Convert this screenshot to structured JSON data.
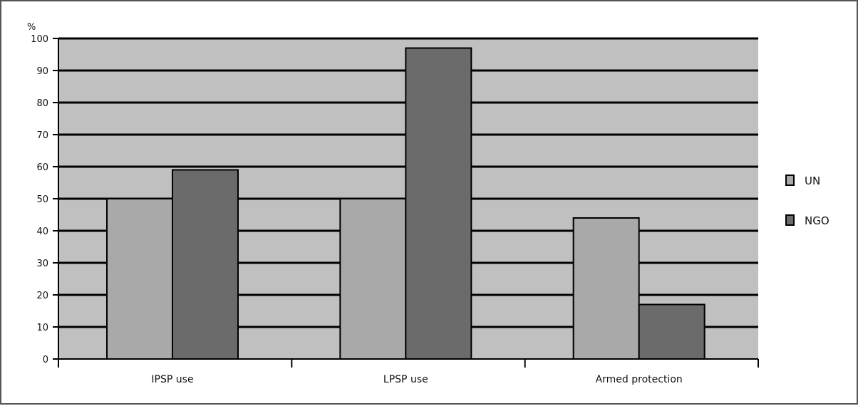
{
  "chart_data": {
    "type": "bar",
    "title": "",
    "xlabel": "",
    "ylabel": "%",
    "ylim": [
      0,
      100
    ],
    "yticks": [
      0,
      10,
      20,
      30,
      40,
      50,
      60,
      70,
      80,
      90,
      100
    ],
    "grid": true,
    "legend_position": "right",
    "categories": [
      "IPSP use",
      "LPSP use",
      "Armed protection"
    ],
    "series": [
      {
        "name": "UN",
        "values": [
          50,
          50,
          44
        ],
        "color": "#a9a9a9"
      },
      {
        "name": "NGO",
        "values": [
          59,
          97,
          17
        ],
        "color": "#6b6b6b"
      }
    ],
    "plot_background": "#c0c0c0",
    "gridline_color": "#000000"
  }
}
